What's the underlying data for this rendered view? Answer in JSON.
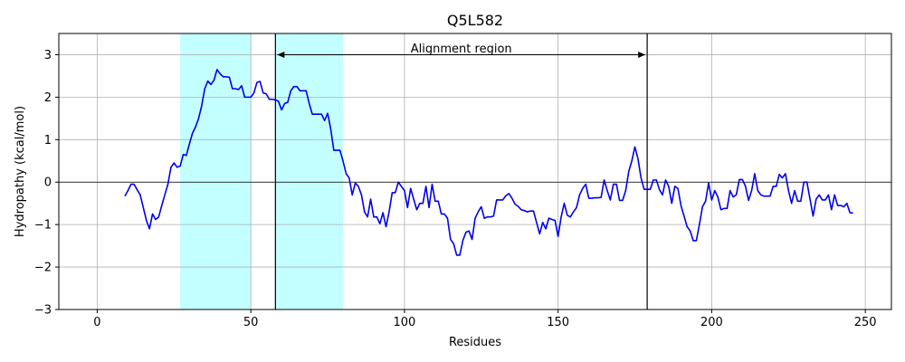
{
  "chart_data": {
    "type": "line",
    "title": "Q5L582",
    "xlabel": "Residues",
    "ylabel": "Hydropathy (kcal/mol)",
    "xlim": [
      -12.5,
      258.5
    ],
    "ylim": [
      -3,
      3.5
    ],
    "xticks": [
      0,
      50,
      100,
      150,
      200,
      250
    ],
    "yticks": [
      -3,
      -2,
      -1,
      0,
      1,
      2,
      3
    ],
    "grid": true,
    "zero_line": true,
    "highlight_regions": [
      {
        "start": 27,
        "end": 50,
        "color": "#c4ffff"
      },
      {
        "start": 58,
        "end": 80,
        "color": "#c4ffff"
      }
    ],
    "vertical_lines": [
      58,
      179
    ],
    "annotation": {
      "text": "Alignment region",
      "from": 58,
      "to": 179,
      "y": 3.0,
      "text_y": 3.15
    },
    "series": [
      {
        "name": "Hydropathy",
        "color": "#0000ee",
        "x": [
          9,
          10,
          11,
          12,
          13,
          14,
          15,
          16,
          17,
          18,
          19,
          20,
          21,
          22,
          23,
          24,
          25,
          26,
          27,
          28,
          29,
          30,
          31,
          32,
          33,
          34,
          35,
          36,
          37,
          38,
          39,
          40,
          41,
          42,
          43,
          44,
          45,
          46,
          47,
          48,
          49,
          50,
          51,
          52,
          53,
          54,
          55,
          56,
          57,
          58,
          59,
          60,
          61,
          62,
          63,
          64,
          65,
          66,
          67,
          68,
          69,
          70,
          71,
          72,
          73,
          74,
          75,
          76,
          77,
          78,
          79,
          80,
          81,
          82,
          83,
          84,
          85,
          86,
          87,
          88,
          89,
          90,
          91,
          92,
          93,
          94,
          95,
          96,
          97,
          98,
          99,
          100,
          101,
          102,
          103,
          104,
          105,
          106,
          107,
          108,
          109,
          110,
          111,
          112,
          113,
          114,
          115,
          116,
          117,
          118,
          119,
          120,
          121,
          122,
          123,
          124,
          125,
          126,
          127,
          128,
          129,
          130,
          131,
          132,
          133,
          134,
          135,
          136,
          137,
          138,
          139,
          140,
          141,
          142,
          143,
          144,
          145,
          146,
          147,
          148,
          149,
          150,
          151,
          152,
          153,
          154,
          155,
          156,
          157,
          158,
          159,
          160,
          161,
          162,
          163,
          164,
          165,
          166,
          167,
          168,
          169,
          170,
          171,
          172,
          173,
          174,
          175,
          176,
          177,
          178,
          179,
          180,
          181,
          182,
          183,
          184,
          185,
          186,
          187,
          188,
          189,
          190,
          191,
          192,
          193,
          194,
          195,
          196,
          197,
          198,
          199,
          200,
          201,
          202,
          203,
          204,
          205,
          206,
          207,
          208,
          209,
          210,
          211,
          212,
          213,
          214,
          215,
          216,
          217,
          218,
          219,
          220,
          221,
          222,
          223,
          224,
          225,
          226,
          227,
          228,
          229,
          230,
          231,
          232,
          233,
          234,
          235,
          236,
          237,
          238,
          239,
          240,
          241,
          242,
          243,
          244,
          245,
          246
        ],
        "values": [
          -0.33,
          -0.2,
          -0.05,
          -0.05,
          -0.18,
          -0.3,
          -0.6,
          -0.9,
          -1.1,
          -0.75,
          -0.88,
          -0.82,
          -0.55,
          -0.3,
          -0.05,
          0.35,
          0.45,
          0.35,
          0.38,
          0.65,
          0.63,
          0.9,
          1.15,
          1.3,
          1.5,
          1.8,
          2.2,
          2.38,
          2.3,
          2.4,
          2.65,
          2.55,
          2.48,
          2.48,
          2.47,
          2.2,
          2.2,
          2.18,
          2.27,
          2.0,
          2.0,
          2.0,
          2.1,
          2.35,
          2.37,
          2.1,
          2.08,
          1.95,
          1.95,
          1.94,
          1.9,
          1.7,
          1.85,
          1.88,
          2.15,
          2.25,
          2.25,
          2.15,
          2.15,
          2.15,
          1.85,
          1.6,
          1.6,
          1.6,
          1.6,
          1.45,
          1.62,
          1.25,
          0.75,
          0.75,
          0.75,
          0.5,
          0.2,
          0.1,
          -0.3,
          -0.02,
          -0.1,
          -0.3,
          -0.7,
          -0.82,
          -0.4,
          -0.82,
          -0.82,
          -0.98,
          -0.72,
          -1.05,
          -0.7,
          -0.25,
          -0.25,
          0.0,
          -0.1,
          -0.2,
          -0.6,
          -0.15,
          -0.4,
          -0.65,
          -0.5,
          -0.5,
          -0.1,
          -0.6,
          -0.05,
          -0.45,
          -0.45,
          -0.75,
          -0.75,
          -0.85,
          -1.35,
          -1.45,
          -1.72,
          -1.72,
          -1.38,
          -1.18,
          -1.15,
          -1.35,
          -0.85,
          -0.7,
          -0.58,
          -0.85,
          -0.82,
          -0.82,
          -0.8,
          -0.42,
          -0.42,
          -0.42,
          -0.32,
          -0.27,
          -0.38,
          -0.52,
          -0.57,
          -0.65,
          -0.67,
          -0.7,
          -0.68,
          -0.68,
          -0.95,
          -1.22,
          -0.95,
          -1.1,
          -0.85,
          -0.88,
          -0.9,
          -1.28,
          -0.82,
          -0.5,
          -0.78,
          -0.82,
          -0.7,
          -0.6,
          -0.3,
          -0.15,
          -0.05,
          -0.38,
          -0.38,
          -0.37,
          -0.37,
          -0.36,
          0.05,
          -0.2,
          -0.42,
          -0.05,
          -0.05,
          -0.43,
          -0.43,
          -0.2,
          0.25,
          0.5,
          0.83,
          0.55,
          0.1,
          -0.17,
          -0.17,
          -0.17,
          0.05,
          0.05,
          -0.18,
          -0.3,
          0.05,
          -0.1,
          -0.5,
          -0.1,
          -0.15,
          -0.55,
          -0.8,
          -1.05,
          -1.15,
          -1.38,
          -1.38,
          -1.0,
          -0.58,
          -0.45,
          -0.02,
          -0.42,
          -0.2,
          -0.35,
          -0.65,
          -0.62,
          -0.62,
          -0.2,
          -0.35,
          -0.3,
          0.06,
          0.06,
          -0.1,
          -0.43,
          -0.2,
          0.2,
          -0.2,
          -0.3,
          -0.33,
          -0.33,
          -0.33,
          -0.1,
          -0.1,
          0.18,
          0.1,
          0.2,
          -0.2,
          -0.5,
          -0.2,
          -0.45,
          -0.45,
          0.0,
          0.0,
          -0.4,
          -0.8,
          -0.4,
          -0.3,
          -0.42,
          -0.42,
          -0.3,
          -0.65,
          -0.3,
          -0.55,
          -0.55,
          -0.58,
          -0.5,
          -0.72,
          -0.73
        ]
      }
    ]
  }
}
